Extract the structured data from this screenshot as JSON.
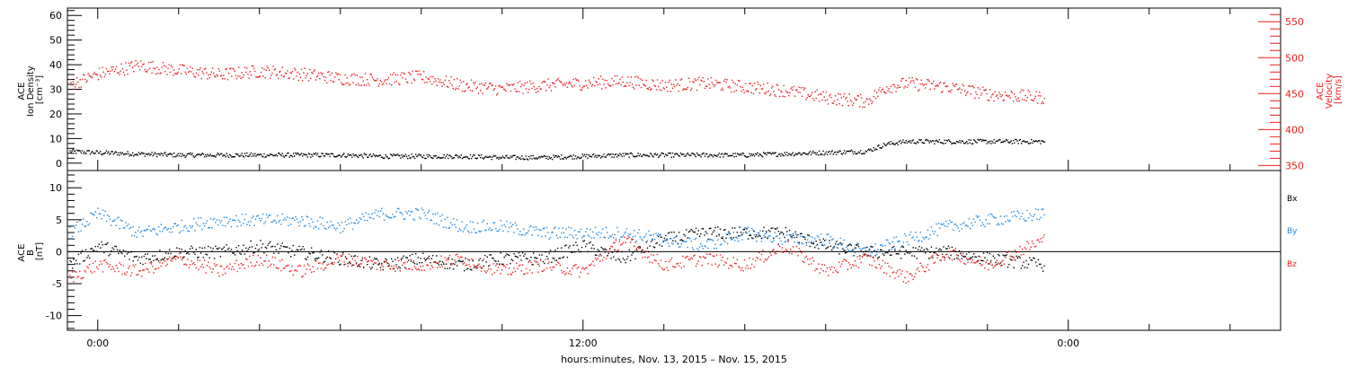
{
  "colors": {
    "black": "#000000",
    "red": "#e8201c",
    "blue": "#1f87e0"
  },
  "xlabel": "hours:minutes, Nov. 13, 2015 – Nov. 15, 2015",
  "x_ticks": [
    {
      "hours": 0,
      "label": "0:00"
    },
    {
      "hours": 12,
      "label": "12:00"
    },
    {
      "hours": 24,
      "label": "0:00"
    }
  ],
  "chart_data": [
    {
      "type": "scatter",
      "panel": "plasma",
      "xlim_hours": [
        -0.75,
        29.25
      ],
      "left_axis": {
        "label_lines": [
          "ACE",
          "Ion Density",
          "[cm⁻³]"
        ],
        "ylim": [
          -3,
          63
        ],
        "ticks": [
          0,
          10,
          20,
          30,
          40,
          50,
          60
        ]
      },
      "right_axis": {
        "label_lines": [
          "ACE",
          "Velocity",
          "[km/s]"
        ],
        "ylim": [
          343,
          569
        ],
        "ticks": [
          350,
          400,
          450,
          500,
          550
        ]
      },
      "series": [
        {
          "name": "",
          "axis": "left",
          "color": "black",
          "x_hours": [
            -0.7,
            0,
            1,
            2,
            3,
            4,
            5,
            6,
            7,
            8,
            9,
            10,
            11,
            12,
            13,
            14,
            15,
            16,
            17,
            18,
            19,
            19.5,
            20,
            21,
            22,
            23.4
          ],
          "values": [
            5,
            4.5,
            4,
            3.5,
            3.5,
            3.5,
            3.5,
            3.5,
            3,
            3,
            3,
            2.5,
            2.5,
            3,
            3.5,
            3.5,
            3.5,
            3.5,
            4,
            4.5,
            5,
            8,
            9,
            9,
            9,
            9
          ]
        },
        {
          "name": "",
          "axis": "right",
          "color": "red",
          "x_hours": [
            -0.7,
            0,
            1,
            2,
            3,
            4,
            5,
            6,
            7,
            8,
            9,
            10,
            11,
            12,
            13,
            14,
            15,
            16,
            17,
            18,
            19,
            19.5,
            20,
            21,
            22,
            23.4
          ],
          "values": [
            463,
            478,
            490,
            483,
            477,
            482,
            478,
            472,
            470,
            474,
            462,
            457,
            462,
            465,
            468,
            462,
            465,
            460,
            455,
            445,
            440,
            460,
            465,
            460,
            450,
            445
          ]
        }
      ]
    },
    {
      "type": "scatter",
      "panel": "magnetic",
      "xlim_hours": [
        -0.75,
        29.25
      ],
      "left_axis": {
        "label_lines": [
          "ACE",
          "B",
          "[nT]"
        ],
        "ylim": [
          -12.3,
          12.7
        ],
        "ticks": [
          -10,
          -5,
          0,
          5,
          10
        ]
      },
      "zero_line": true,
      "series": [
        {
          "name": "Bx",
          "color": "black",
          "x_hours": [
            -0.7,
            0,
            1,
            2,
            3,
            4,
            5,
            6,
            7,
            8,
            9,
            10,
            11,
            12,
            13,
            14,
            15,
            16,
            17,
            18,
            19,
            20,
            21,
            22,
            23.4
          ],
          "values": [
            -2,
            1,
            -1,
            0,
            0,
            1,
            0,
            -1,
            -2,
            -1,
            -2,
            -1,
            -1,
            1,
            -1,
            2,
            3,
            3,
            3,
            1,
            0,
            0,
            0,
            -1,
            -2
          ]
        },
        {
          "name": "By",
          "color": "blue",
          "x_hours": [
            -0.7,
            0,
            1,
            2,
            3,
            4,
            5,
            6,
            7,
            8,
            9,
            10,
            11,
            12,
            13,
            14,
            15,
            16,
            17,
            18,
            19,
            20,
            21,
            22,
            23.4
          ],
          "values": [
            3,
            6,
            3,
            4,
            5,
            5,
            5,
            4,
            6,
            6,
            4,
            4,
            3,
            3,
            3,
            2,
            1,
            3,
            2,
            2,
            0,
            2,
            4,
            5,
            6
          ]
        },
        {
          "name": "Bz",
          "color": "red",
          "x_hours": [
            -0.7,
            0,
            1,
            2,
            3,
            4,
            5,
            6,
            7,
            8,
            9,
            10,
            11,
            12,
            13,
            14,
            15,
            16,
            17,
            18,
            19,
            20,
            21,
            22,
            23.4
          ],
          "values": [
            -4,
            -2,
            -3,
            -1,
            -3,
            -1,
            -3,
            -1,
            -2,
            -2,
            -1,
            -3,
            -2,
            -3,
            2,
            -2,
            -1,
            -2,
            1,
            -3,
            -1,
            -4,
            0,
            -2,
            2
          ]
        }
      ],
      "legend_position": "right"
    }
  ]
}
